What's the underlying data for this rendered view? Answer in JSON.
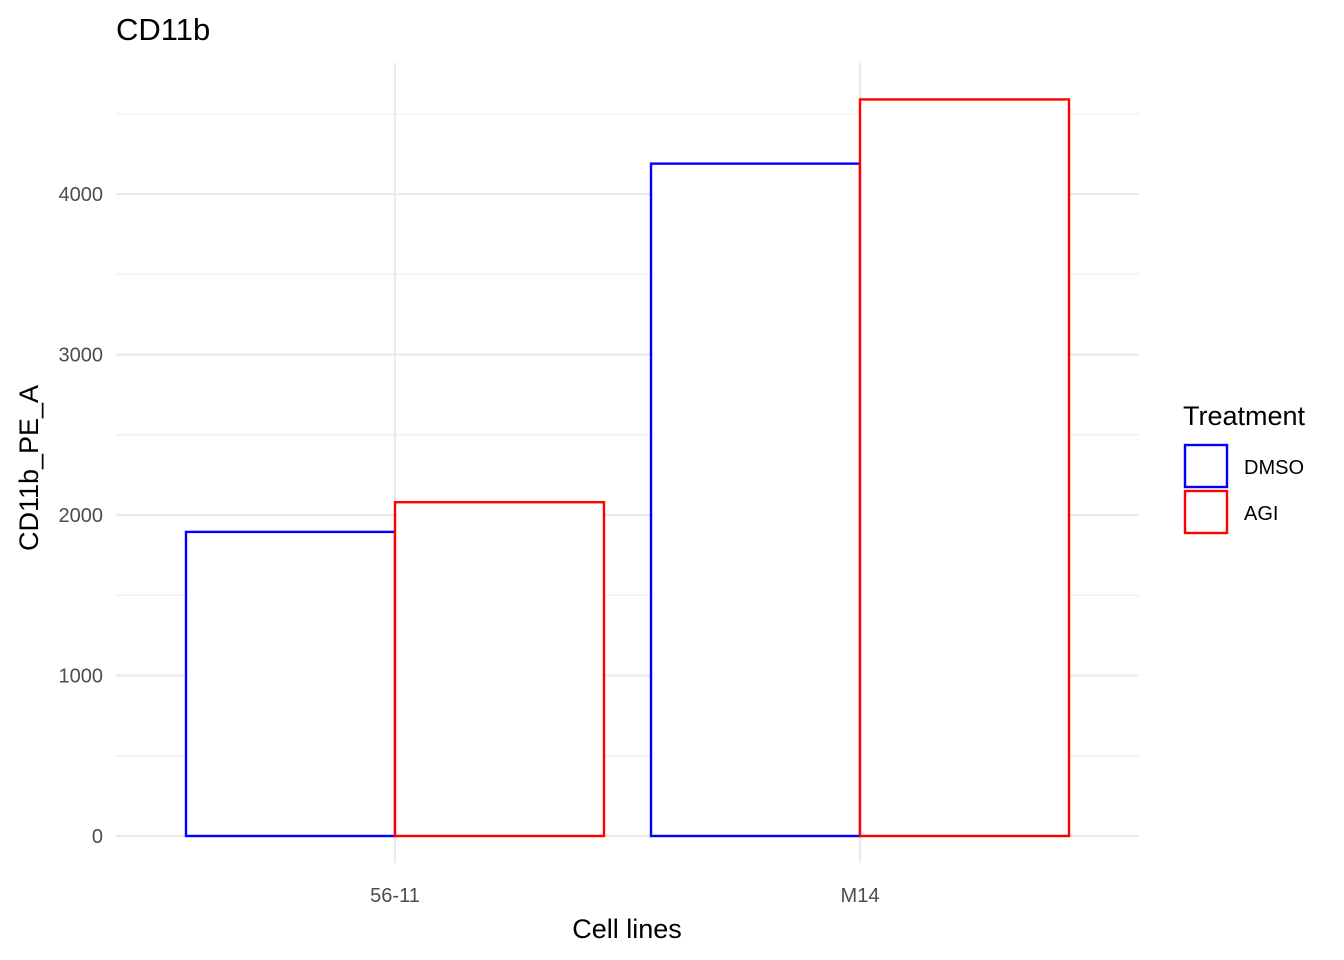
{
  "chart_data": {
    "type": "bar",
    "title": "CD11b",
    "xlabel": "Cell lines",
    "ylabel": "CD11b_PE_A",
    "categories": [
      "56-11",
      "M14"
    ],
    "series": [
      {
        "name": "DMSO",
        "values": [
          1895,
          4190
        ],
        "color": "#0000ff"
      },
      {
        "name": "AGI",
        "values": [
          2080,
          4590
        ],
        "color": "#ff0000"
      }
    ],
    "ylim": [
      0,
      4700
    ],
    "y_ticks": [
      0,
      1000,
      2000,
      3000,
      4000
    ],
    "y_tick_labels": [
      "0",
      "1000",
      "2000",
      "3000",
      "4000"
    ],
    "grid": true,
    "bar_fill": "#ffffff",
    "legend": {
      "title": "Treatment",
      "position": "right"
    }
  }
}
